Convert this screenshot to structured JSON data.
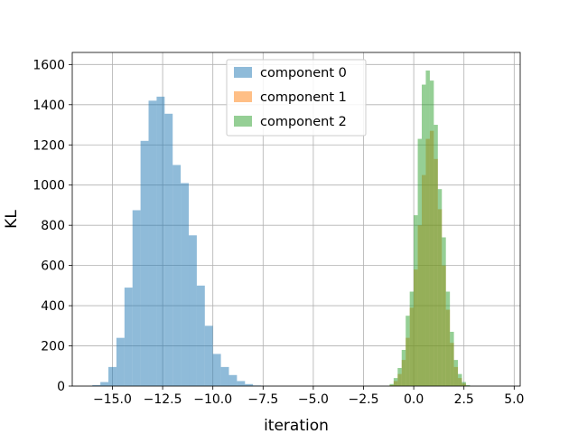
{
  "chart_data": {
    "type": "histogram",
    "xlabel": "iteration",
    "ylabel": "KL",
    "xlim": [
      -17.0,
      5.3
    ],
    "ylim": [
      0,
      1660
    ],
    "xticks": [
      -15.0,
      -12.5,
      -10.0,
      -7.5,
      -5.0,
      -2.5,
      0.0,
      2.5,
      5.0
    ],
    "xtick_labels": [
      "−15.0",
      "−12.5",
      "−10.0",
      "−7.5",
      "−5.0",
      "−2.5",
      "0.0",
      "2.5",
      "5.0"
    ],
    "yticks": [
      0,
      200,
      400,
      600,
      800,
      1000,
      1200,
      1400,
      1600
    ],
    "ytick_labels": [
      "0",
      "200",
      "400",
      "600",
      "800",
      "1000",
      "1200",
      "1400",
      "1600"
    ],
    "grid": true,
    "legend_position": "top-center",
    "series": [
      {
        "name": "component 0",
        "color": "#1f77b4",
        "opacity": 0.5,
        "bin_edges": [
          -16.0,
          -15.6,
          -15.2,
          -14.8,
          -14.4,
          -14.0,
          -13.6,
          -13.2,
          -12.8,
          -12.4,
          -12.0,
          -11.6,
          -11.2,
          -10.8,
          -10.4,
          -10.0,
          -9.6,
          -9.2,
          -8.8,
          -8.4,
          -8.0,
          -7.6,
          -7.2
        ],
        "counts": [
          5,
          20,
          95,
          240,
          490,
          875,
          1220,
          1420,
          1440,
          1355,
          1100,
          1010,
          750,
          500,
          300,
          160,
          95,
          55,
          25,
          10,
          3,
          1
        ]
      },
      {
        "name": "component 1",
        "color": "#ff7f0e",
        "opacity": 0.5,
        "bin_edges": [
          -1.2,
          -1.0,
          -0.8,
          -0.6,
          -0.4,
          -0.2,
          0.0,
          0.2,
          0.4,
          0.6,
          0.8,
          1.0,
          1.2,
          1.4,
          1.6,
          1.8,
          2.0,
          2.2,
          2.4,
          2.6
        ],
        "counts": [
          5,
          25,
          60,
          130,
          240,
          390,
          580,
          800,
          1050,
          1230,
          1270,
          1130,
          880,
          600,
          380,
          215,
          95,
          40,
          12
        ]
      },
      {
        "name": "component 2",
        "color": "#2ca02c",
        "opacity": 0.5,
        "bin_edges": [
          -1.2,
          -1.0,
          -0.8,
          -0.6,
          -0.4,
          -0.2,
          0.0,
          0.2,
          0.4,
          0.6,
          0.8,
          1.0,
          1.2,
          1.4,
          1.6,
          1.8,
          2.0,
          2.2,
          2.4,
          2.6,
          2.8
        ],
        "counts": [
          10,
          40,
          90,
          180,
          350,
          470,
          850,
          1230,
          1500,
          1570,
          1520,
          1300,
          980,
          740,
          470,
          270,
          130,
          60,
          20,
          5
        ]
      }
    ]
  }
}
